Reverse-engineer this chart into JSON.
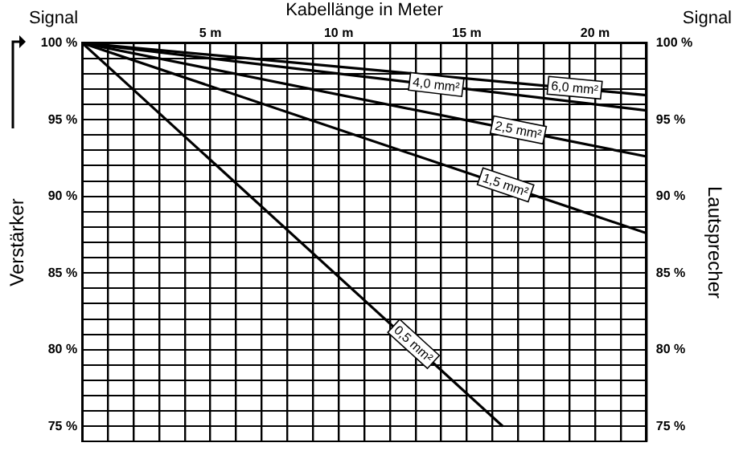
{
  "chart_data": {
    "type": "line",
    "xlabel": "Kabellänge in Meter",
    "ylabel": "Verstärker",
    "y2label": "Lautsprecher",
    "annotations": [
      "Signal",
      "Signal"
    ],
    "xlim": [
      0,
      22
    ],
    "xticks": [
      {
        "value": 0,
        "label": null
      },
      {
        "value": 1,
        "label": null
      },
      {
        "value": 2,
        "label": null
      },
      {
        "value": 3,
        "label": null
      },
      {
        "value": 4,
        "label": null
      },
      {
        "value": 5,
        "label": "5 m"
      },
      {
        "value": 6,
        "label": null
      },
      {
        "value": 7,
        "label": null
      },
      {
        "value": 8,
        "label": null
      },
      {
        "value": 9,
        "label": null
      },
      {
        "value": 10,
        "label": "10 m"
      },
      {
        "value": 11,
        "label": null
      },
      {
        "value": 12,
        "label": null
      },
      {
        "value": 13,
        "label": null
      },
      {
        "value": 14,
        "label": null
      },
      {
        "value": 15,
        "label": "15 m"
      },
      {
        "value": 16,
        "label": null
      },
      {
        "value": 17,
        "label": null
      },
      {
        "value": 18,
        "label": null
      },
      {
        "value": 19,
        "label": null
      },
      {
        "value": 20,
        "label": "20 m"
      },
      {
        "value": 21,
        "label": null
      },
      {
        "value": 22,
        "label": null
      }
    ],
    "ylim": [
      74,
      100
    ],
    "yticks": [
      {
        "value": 74,
        "label": null
      },
      {
        "value": 75,
        "label": "75 %"
      },
      {
        "value": 76,
        "label": null
      },
      {
        "value": 77,
        "label": null
      },
      {
        "value": 78,
        "label": null
      },
      {
        "value": 79,
        "label": null
      },
      {
        "value": 80,
        "label": "80 %"
      },
      {
        "value": 81,
        "label": null
      },
      {
        "value": 82,
        "label": null
      },
      {
        "value": 83,
        "label": null
      },
      {
        "value": 84,
        "label": null
      },
      {
        "value": 85,
        "label": "85 %"
      },
      {
        "value": 86,
        "label": null
      },
      {
        "value": 87,
        "label": null
      },
      {
        "value": 88,
        "label": null
      },
      {
        "value": 89,
        "label": null
      },
      {
        "value": 90,
        "label": "90 %"
      },
      {
        "value": 91,
        "label": null
      },
      {
        "value": 92,
        "label": null
      },
      {
        "value": 93,
        "label": null
      },
      {
        "value": 94,
        "label": null
      },
      {
        "value": 95,
        "label": "95 %"
      },
      {
        "value": 96,
        "label": null
      },
      {
        "value": 97,
        "label": null
      },
      {
        "value": 98,
        "label": null
      },
      {
        "value": 99,
        "label": null
      },
      {
        "value": 100,
        "label": "100 %"
      }
    ],
    "y2lim": [
      74,
      100
    ],
    "y2ticks": [
      {
        "value": 74,
        "label": null
      },
      {
        "value": 75,
        "label": "75 %"
      },
      {
        "value": 76,
        "label": null
      },
      {
        "value": 77,
        "label": null
      },
      {
        "value": 78,
        "label": null
      },
      {
        "value": 79,
        "label": null
      },
      {
        "value": 80,
        "label": "80 %"
      },
      {
        "value": 81,
        "label": null
      },
      {
        "value": 82,
        "label": null
      },
      {
        "value": 83,
        "label": null
      },
      {
        "value": 84,
        "label": null
      },
      {
        "value": 85,
        "label": "85 %"
      },
      {
        "value": 86,
        "label": null
      },
      {
        "value": 87,
        "label": null
      },
      {
        "value": 88,
        "label": null
      },
      {
        "value": 89,
        "label": null
      },
      {
        "value": 90,
        "label": "90 %"
      },
      {
        "value": 91,
        "label": null
      },
      {
        "value": 92,
        "label": null
      },
      {
        "value": 93,
        "label": null
      },
      {
        "value": 94,
        "label": null
      },
      {
        "value": 95,
        "label": "95 %"
      },
      {
        "value": 96,
        "label": null
      },
      {
        "value": 97,
        "label": null
      },
      {
        "value": 98,
        "label": null
      },
      {
        "value": 99,
        "label": null
      },
      {
        "value": 100,
        "label": "100 %"
      }
    ],
    "grid": true,
    "legend": false,
    "marker": "none",
    "line_style": "solid",
    "series": [
      {
        "name": "6,0 mm²",
        "color": "#000000",
        "x": [
          0,
          22
        ],
        "values": [
          100,
          96.6
        ]
      },
      {
        "name": "4,0 mm²",
        "color": "#000000",
        "x": [
          0,
          22
        ],
        "values": [
          100,
          95.6
        ]
      },
      {
        "name": "2,5 mm²",
        "color": "#000000",
        "x": [
          0,
          22
        ],
        "values": [
          100,
          92.6
        ]
      },
      {
        "name": "1,5 mm²",
        "color": "#000000",
        "x": [
          0,
          22
        ],
        "values": [
          100,
          87.6
        ]
      },
      {
        "name": "0,5 mm²",
        "color": "#000000",
        "x": [
          0,
          16.4
        ],
        "values": [
          100,
          75
        ]
      }
    ]
  }
}
